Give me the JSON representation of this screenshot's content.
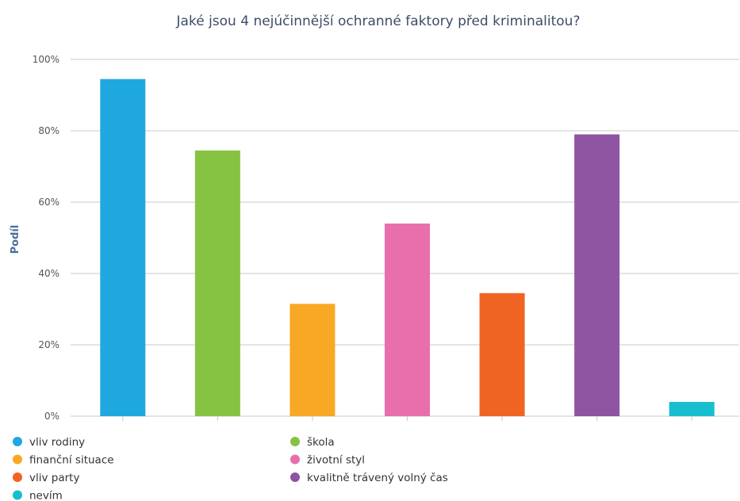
{
  "chart_data": {
    "type": "bar",
    "title": "Jaké jsou 4 nejúčinnější ochranné faktory před kriminalitou?",
    "ylabel": "Podíl",
    "xlabel": "",
    "ylim": [
      0,
      100
    ],
    "ytick_values": [
      0,
      20,
      40,
      60,
      80,
      100
    ],
    "ytick_labels": [
      "0%",
      "20%",
      "40%",
      "60%",
      "80%",
      "100%"
    ],
    "grid": true,
    "legend_position": "bottom",
    "categories": [
      "vliv rodiny",
      "škola",
      "finanční situace",
      "životní styl",
      "vliv party",
      "kvalitně trávený volný čas",
      "nevím"
    ],
    "values": [
      94.5,
      74.5,
      31.5,
      54,
      34.5,
      79,
      4
    ],
    "colors": [
      "#1fa8e0",
      "#87c342",
      "#f9a825",
      "#e86fac",
      "#f06423",
      "#8e54a2",
      "#17becf"
    ],
    "axis_label_color": "#4b6e9a"
  }
}
